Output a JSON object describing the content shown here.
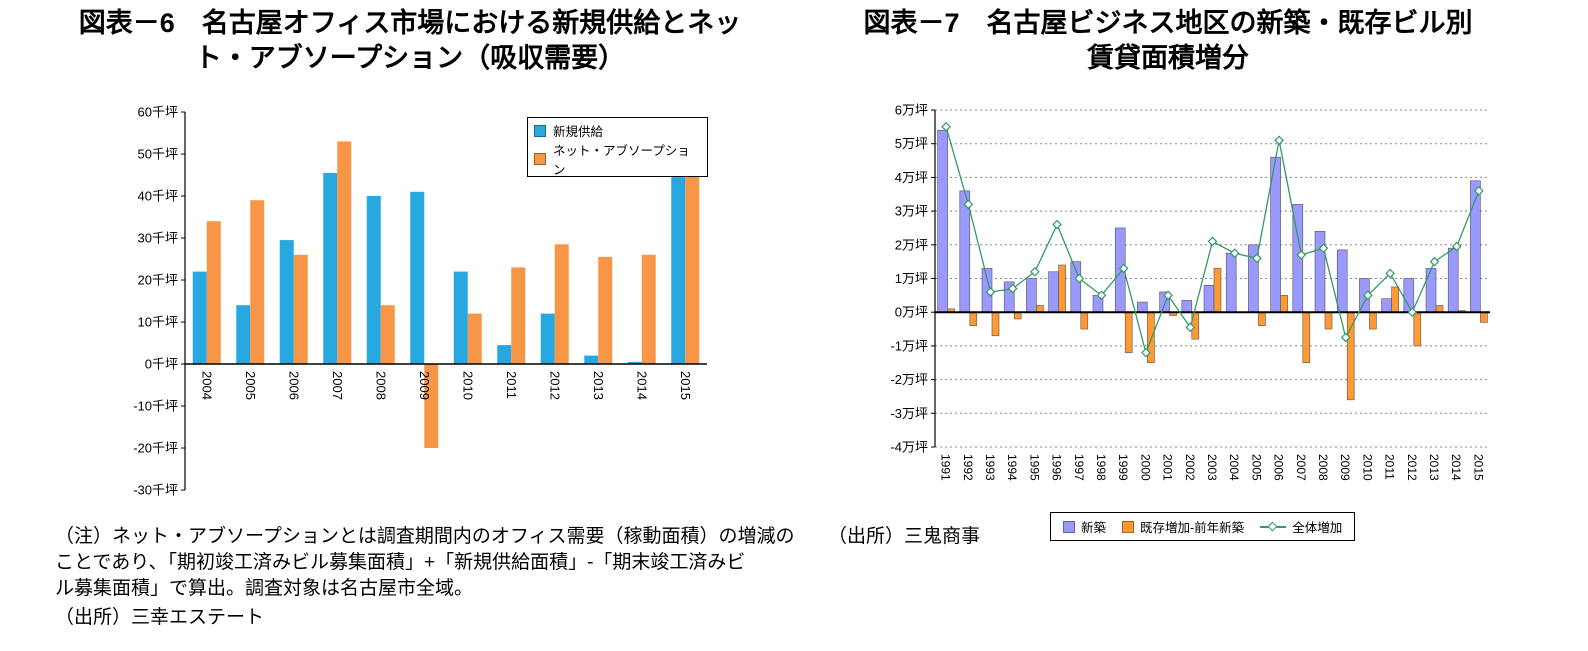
{
  "left_panel": {
    "title_lines": [
      "図表－6　名古屋オフィス市場における新規供給とネッ",
      "ト・アブソープション（吸収需要）"
    ],
    "notes": [
      "（注）ネット・アブソープションとは調査期間内のオフィス需要（稼動面積）の増減の",
      "ことであり、「期初竣工済みビル募集面積」+「新規供給面積」-「期末竣工済みビ",
      "ル募集面積」で算出。調査対象は名古屋市全域。"
    ],
    "source": "（出所）三幸エステート"
  },
  "right_panel": {
    "title_lines": [
      "図表－7　名古屋ビジネス地区の新築・既存ビル別",
      "賃貸面積増分"
    ],
    "source": "（出所）三鬼商事"
  },
  "chart_data": [
    {
      "type": "bar",
      "title": "名古屋オフィス市場における新規供給とネット・アブソープション（吸収需要）",
      "categories": [
        "2004",
        "2005",
        "2006",
        "2007",
        "2008",
        "2009",
        "2010",
        "2011",
        "2012",
        "2013",
        "2014",
        "2015"
      ],
      "series": [
        {
          "name": "新規供給",
          "type": "bar",
          "color": "#28a8e0",
          "values": [
            22,
            14,
            29.5,
            45.5,
            40,
            41,
            22,
            4.5,
            12,
            2,
            0.5,
            44.5
          ]
        },
        {
          "name": "ネット・アブソープション",
          "type": "bar",
          "color": "#f79646",
          "values": [
            34,
            39,
            26,
            53,
            14,
            -20,
            12,
            23,
            28.5,
            25.5,
            26,
            56
          ]
        }
      ],
      "ylim": [
        -30,
        60
      ],
      "yunit": "千坪",
      "ytick_values": [
        60,
        50,
        40,
        30,
        20,
        10,
        0,
        -10,
        -20,
        -30
      ],
      "ytick_labels": [
        "60千坪",
        "50千坪",
        "40千坪",
        "30千坪",
        "20千坪",
        "10千坪",
        "0千坪",
        "-10千坪",
        "-20千坪",
        "-30千坪"
      ],
      "grid": false,
      "legend_position": "top-right-inside"
    },
    {
      "type": "bar-line",
      "title": "名古屋ビジネス地区の新築・既存ビル別賃貸面積増分",
      "categories": [
        "1991",
        "1992",
        "1993",
        "1994",
        "1995",
        "1996",
        "1997",
        "1998",
        "1999",
        "2000",
        "2001",
        "2002",
        "2003",
        "2004",
        "2005",
        "2006",
        "2007",
        "2008",
        "2009",
        "2010",
        "2011",
        "2012",
        "2013",
        "2014",
        "2015"
      ],
      "series": [
        {
          "name": "新築",
          "type": "bar",
          "color": "#9999ff",
          "values": [
            5.4,
            3.6,
            1.3,
            0.9,
            1.0,
            1.2,
            1.5,
            0.5,
            2.5,
            0.3,
            0.6,
            0.35,
            0.8,
            1.75,
            2.0,
            4.6,
            3.2,
            2.4,
            1.85,
            1.0,
            0.4,
            1.0,
            1.3,
            1.9,
            3.9
          ]
        },
        {
          "name": "既存増加-前年新築",
          "type": "bar",
          "color": "#ff9933",
          "values": [
            0.1,
            -0.4,
            -0.7,
            -0.2,
            0.2,
            1.4,
            -0.5,
            0.0,
            -1.2,
            -1.5,
            -0.1,
            -0.8,
            1.3,
            0.0,
            -0.4,
            0.5,
            -1.5,
            -0.5,
            -2.6,
            -0.5,
            0.75,
            -1.0,
            0.2,
            0.05,
            -0.3
          ]
        },
        {
          "name": "全体増加",
          "type": "line",
          "color": "#339966",
          "values": [
            5.5,
            3.2,
            0.6,
            0.7,
            1.2,
            2.6,
            1.0,
            0.5,
            1.3,
            -1.2,
            0.5,
            -0.45,
            2.1,
            1.75,
            1.6,
            5.1,
            1.7,
            1.9,
            -0.75,
            0.5,
            1.15,
            0.0,
            1.5,
            1.95,
            3.6
          ]
        }
      ],
      "ylim": [
        -4,
        6
      ],
      "yunit": "万坪",
      "ytick_values": [
        6,
        5,
        4,
        3,
        2,
        1,
        0,
        -1,
        -2,
        -3,
        -4
      ],
      "ytick_labels": [
        "6万坪",
        "5万坪",
        "4万坪",
        "3万坪",
        "2万坪",
        "1万坪",
        "0万坪",
        "-1万坪",
        "-2万坪",
        "-3万坪",
        "-4万坪"
      ],
      "grid": true,
      "legend_position": "bottom"
    }
  ]
}
